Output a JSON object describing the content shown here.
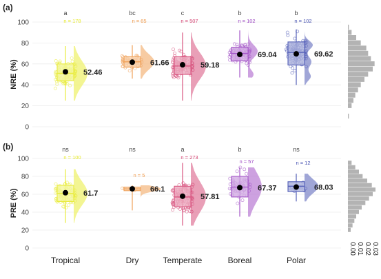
{
  "figure": {
    "categories": [
      "Tropical",
      "Dry",
      "Temperate",
      "Boreal",
      "Polar"
    ],
    "colors": {
      "Tropical": "#e9ec3f",
      "Dry": "#f0a25a",
      "Temperate": "#d8547f",
      "Boreal": "#a557c8",
      "Polar": "#5560b8",
      "grid": "#ebebeb",
      "marginal": "#b3b3b3",
      "text": "#222222"
    },
    "marginal_axis": {
      "ticks": [
        "0.00",
        "0.01",
        "0.02",
        "0.03"
      ],
      "range": [
        0,
        0.03
      ]
    }
  },
  "chart_data": [
    {
      "panel_label": "(a)",
      "type": "box-violin-scatter",
      "ylabel": "NRE (%)",
      "ylim": [
        0,
        100
      ],
      "yticks": [
        0,
        20,
        40,
        60,
        80,
        100
      ],
      "categories": [
        "Tropical",
        "Dry",
        "Temperate",
        "Boreal",
        "Polar"
      ],
      "letters": [
        "a",
        "bc",
        "c",
        "b",
        "b"
      ],
      "n_labels": [
        "n = 178",
        "n = 65",
        "n = 507",
        "n = 102",
        "n = 102"
      ],
      "means": [
        52.46,
        61.66,
        59.18,
        69.04,
        69.62
      ],
      "mean_labels": [
        "52.46",
        "61.66",
        "59.18",
        "69.04",
        "69.62"
      ],
      "boxes": [
        {
          "q1": 44,
          "median": 51,
          "q3": 60,
          "min": 25,
          "max": 77
        },
        {
          "q1": 57,
          "median": 62,
          "q3": 67,
          "min": 46,
          "max": 78
        },
        {
          "q1": 50,
          "median": 58,
          "q3": 67,
          "min": 25,
          "max": 90
        },
        {
          "q1": 63,
          "median": 70,
          "q3": 76,
          "min": 47,
          "max": 92
        },
        {
          "q1": 59,
          "median": 71,
          "q3": 81,
          "min": 40,
          "max": 93
        }
      ],
      "marginal_density": [
        {
          "y": 10,
          "d": 0.001
        },
        {
          "y": 20,
          "d": 0.004
        },
        {
          "y": 25,
          "d": 0.006
        },
        {
          "y": 30,
          "d": 0.008
        },
        {
          "y": 35,
          "d": 0.011
        },
        {
          "y": 40,
          "d": 0.014
        },
        {
          "y": 45,
          "d": 0.018
        },
        {
          "y": 50,
          "d": 0.022
        },
        {
          "y": 55,
          "d": 0.027
        },
        {
          "y": 60,
          "d": 0.029
        },
        {
          "y": 65,
          "d": 0.025
        },
        {
          "y": 70,
          "d": 0.022
        },
        {
          "y": 75,
          "d": 0.02
        },
        {
          "y": 80,
          "d": 0.014
        },
        {
          "y": 85,
          "d": 0.009
        },
        {
          "y": 90,
          "d": 0.004
        },
        {
          "y": 95,
          "d": 0.001
        }
      ]
    },
    {
      "panel_label": "(b)",
      "type": "box-violin-scatter",
      "ylabel": "PRE (%)",
      "ylim": [
        0,
        100
      ],
      "yticks": [
        0,
        20,
        40,
        60,
        80,
        100
      ],
      "categories": [
        "Tropical",
        "Dry",
        "Temperate",
        "Boreal",
        "Polar"
      ],
      "letters": [
        "ns",
        "ns",
        "a",
        "b",
        "ns"
      ],
      "n_labels": [
        "n = 100",
        "n = 5",
        "n = 273",
        "n = 57",
        "n = 12"
      ],
      "means": [
        61.7,
        66.1,
        57.81,
        67.37,
        68.03
      ],
      "mean_labels": [
        "61.7",
        "66.1",
        "57.81",
        "67.37",
        "68.03"
      ],
      "boxes": [
        {
          "q1": 52,
          "median": 61,
          "q3": 70,
          "min": 28,
          "max": 88
        },
        {
          "q1": 64,
          "median": 66,
          "q3": 68,
          "min": 42,
          "max": 70
        },
        {
          "q1": 46,
          "median": 57,
          "q3": 69,
          "min": 25,
          "max": 95
        },
        {
          "q1": 57,
          "median": 68,
          "q3": 80,
          "min": 35,
          "max": 90
        },
        {
          "q1": 63,
          "median": 69,
          "q3": 74,
          "min": 52,
          "max": 83
        }
      ],
      "marginal_density": [
        {
          "y": 20,
          "d": 0.003
        },
        {
          "y": 25,
          "d": 0.005
        },
        {
          "y": 30,
          "d": 0.007
        },
        {
          "y": 35,
          "d": 0.009
        },
        {
          "y": 40,
          "d": 0.012
        },
        {
          "y": 45,
          "d": 0.015
        },
        {
          "y": 50,
          "d": 0.019
        },
        {
          "y": 55,
          "d": 0.023
        },
        {
          "y": 60,
          "d": 0.027
        },
        {
          "y": 65,
          "d": 0.03
        },
        {
          "y": 70,
          "d": 0.026
        },
        {
          "y": 75,
          "d": 0.021
        },
        {
          "y": 80,
          "d": 0.016
        },
        {
          "y": 85,
          "d": 0.012
        },
        {
          "y": 90,
          "d": 0.008
        },
        {
          "y": 95,
          "d": 0.004
        }
      ]
    }
  ]
}
